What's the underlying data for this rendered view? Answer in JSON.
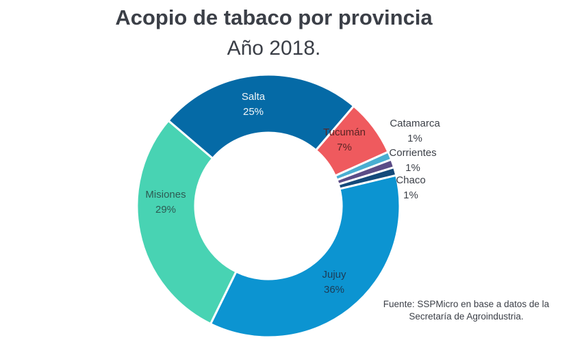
{
  "title": "Acopio de tabaco por provincia",
  "subtitle": "Año 2018.",
  "source": {
    "line1": "Fuente: SSPMicro en base a datos de la",
    "line2": "Secretaría de Agroindustria."
  },
  "chart_data": {
    "type": "pie",
    "variant": "donut",
    "title": "Acopio de tabaco por provincia",
    "subtitle": "Año 2018.",
    "unit": "%",
    "slices": [
      {
        "label": "Jujuy",
        "value": 36,
        "value_label": "36%",
        "color": "#0c94d1"
      },
      {
        "label": "Misiones",
        "value": 29,
        "value_label": "29%",
        "color": "#48d3b3"
      },
      {
        "label": "Salta",
        "value": 25,
        "value_label": "25%",
        "color": "#056aa6"
      },
      {
        "label": "Tucumán",
        "value": 7,
        "value_label": "7%",
        "color": "#ef5a5e"
      },
      {
        "label": "Catamarca",
        "value": 1,
        "value_label": "1%",
        "color": "#4aaed1"
      },
      {
        "label": "Corrientes",
        "value": 1,
        "value_label": "1%",
        "color": "#5b4c86"
      },
      {
        "label": "Chaco",
        "value": 1,
        "value_label": "1%",
        "color": "#144a7a"
      }
    ]
  }
}
